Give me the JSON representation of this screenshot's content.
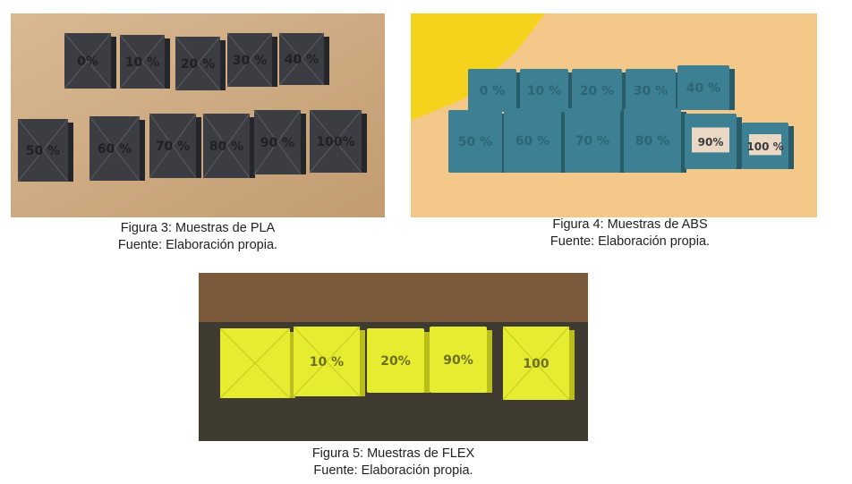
{
  "figures": [
    {
      "id": "fig3",
      "caption": "Figura 3: Muestras de PLA",
      "source": "Fuente: Elaboración propia.",
      "cube_labels": [
        "0%",
        "10 %",
        "20 %",
        "30 %",
        "40 %",
        "50 %",
        "60 %",
        "70 %",
        "80 %",
        "90 %",
        "100%"
      ]
    },
    {
      "id": "fig4",
      "caption": "Figura 4: Muestras de ABS",
      "source": "Fuente: Elaboración propia.",
      "cube_labels": [
        "0 %",
        "10 %",
        "20 %",
        "30 %",
        "40 %",
        "50 %",
        "60 %",
        "70 %",
        "80 %",
        "90%",
        "100 %"
      ]
    },
    {
      "id": "fig5",
      "caption": "Figura 5: Muestras de FLEX",
      "source": "Fuente: Elaboración propia.",
      "cube_labels": [
        "",
        "10 %",
        "20%",
        "90%",
        "100"
      ]
    }
  ],
  "colors": {
    "pla_cube": "#3b3d42",
    "pla_background": "#cfae86",
    "abs_cube": "#3d7f93",
    "abs_background": "#f3c585",
    "flex_cube": "#e6ec2f",
    "flex_background": "#3e3a30"
  }
}
